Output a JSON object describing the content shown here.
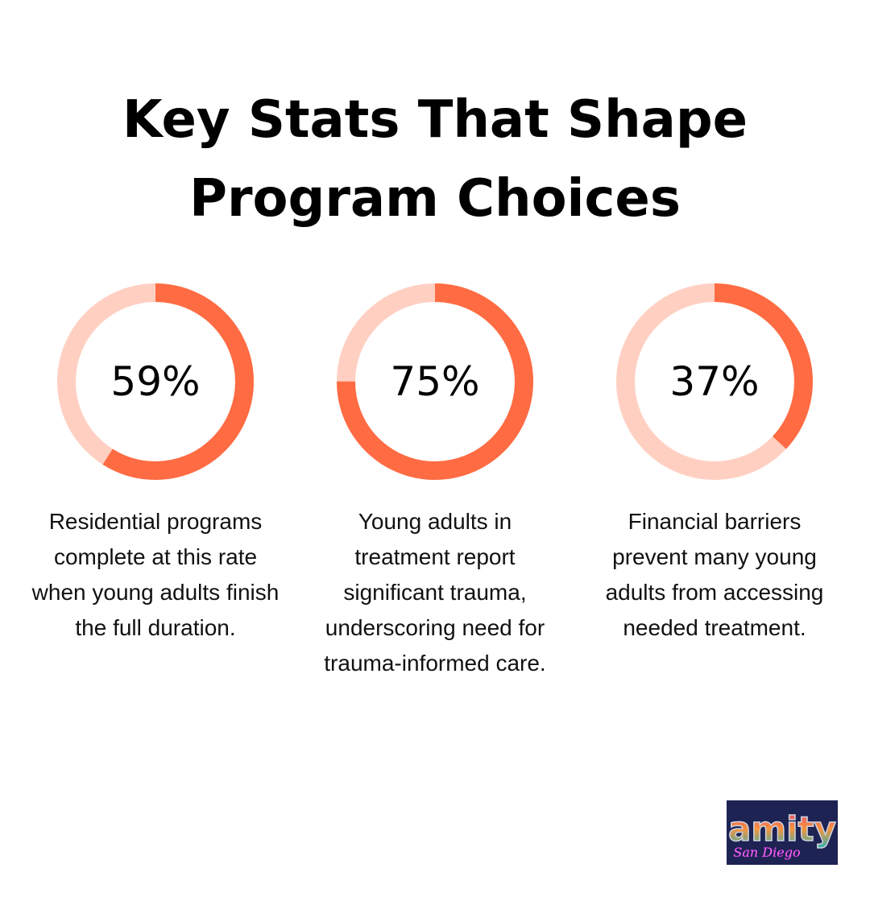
{
  "title": {
    "line1": "Key Stats That Shape",
    "line2": "Program Choices"
  },
  "colors": {
    "filled": "#ff6b42",
    "track": "#ffd0c2"
  },
  "chart_data": {
    "type": "pie",
    "subtype": "donut",
    "title": "Key Stats That Shape Program Choices",
    "items": [
      {
        "value": 59,
        "label": "59%",
        "description": "Residential programs complete at this rate when young adults finish the full duration."
      },
      {
        "value": 75,
        "label": "75%",
        "description": "Young adults in treatment report significant trauma, underscoring need for trauma-informed care."
      },
      {
        "value": 37,
        "label": "37%",
        "description": "Financial barriers prevent many young adults from accessing needed treatment."
      }
    ]
  },
  "logo": {
    "text": "amity",
    "subtext": "San Diego"
  }
}
